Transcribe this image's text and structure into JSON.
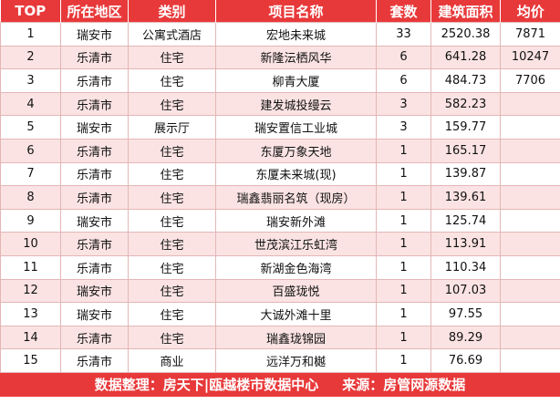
{
  "headers": [
    "TOP",
    "所在地区",
    "类别",
    "项目名称",
    "套数",
    "建筑面积",
    "均价"
  ],
  "rows": [
    {
      "top": "1",
      "region": "瑞安市",
      "category": "公寓式酒店",
      "project": "宏地未来城",
      "units": "33",
      "area": "2520.38",
      "price": "7871"
    },
    {
      "top": "2",
      "region": "乐清市",
      "category": "住宅",
      "project": "新隆沄栖风华",
      "units": "6",
      "area": "641.28",
      "price": "10247"
    },
    {
      "top": "3",
      "region": "乐清市",
      "category": "住宅",
      "project": "柳青大厦",
      "units": "6",
      "area": "484.73",
      "price": "7706"
    },
    {
      "top": "4",
      "region": "乐清市",
      "category": "住宅",
      "project": "建发城投缦云",
      "units": "3",
      "area": "582.23",
      "price": ""
    },
    {
      "top": "5",
      "region": "瑞安市",
      "category": "展示厅",
      "project": "瑞安置信工业城",
      "units": "3",
      "area": "159.77",
      "price": ""
    },
    {
      "top": "6",
      "region": "乐清市",
      "category": "住宅",
      "project": "东厦万象天地",
      "units": "1",
      "area": "165.17",
      "price": ""
    },
    {
      "top": "7",
      "region": "乐清市",
      "category": "住宅",
      "project": "东厦未来城(现)",
      "units": "1",
      "area": "139.87",
      "price": ""
    },
    {
      "top": "8",
      "region": "乐清市",
      "category": "住宅",
      "project": "瑞鑫翡丽名筑（现房）",
      "units": "1",
      "area": "139.61",
      "price": ""
    },
    {
      "top": "9",
      "region": "瑞安市",
      "category": "住宅",
      "project": "瑞安新外滩",
      "units": "1",
      "area": "125.74",
      "price": ""
    },
    {
      "top": "10",
      "region": "乐清市",
      "category": "住宅",
      "project": "世茂滨江乐虹湾",
      "units": "1",
      "area": "113.91",
      "price": ""
    },
    {
      "top": "11",
      "region": "乐清市",
      "category": "住宅",
      "project": "新湖金色海湾",
      "units": "1",
      "area": "110.34",
      "price": ""
    },
    {
      "top": "12",
      "region": "瑞安市",
      "category": "住宅",
      "project": "百盛珑悦",
      "units": "1",
      "area": "107.03",
      "price": ""
    },
    {
      "top": "13",
      "region": "瑞安市",
      "category": "住宅",
      "project": "大诚外滩十里",
      "units": "1",
      "area": "97.55",
      "price": ""
    },
    {
      "top": "14",
      "region": "乐清市",
      "category": "住宅",
      "project": "瑞鑫珑锦园",
      "units": "1",
      "area": "89.29",
      "price": ""
    },
    {
      "top": "15",
      "region": "乐清市",
      "category": "商业",
      "project": "远洋万和樾",
      "units": "1",
      "area": "76.69",
      "price": ""
    }
  ],
  "footer": {
    "source_left": "数据整理：房天下|瓯越楼市数据中心",
    "source_right": "来源：房管网源数据"
  },
  "colors": {
    "header_bg": "#e8393a",
    "stripe_bg": "#fbe3e3",
    "border": "#e4b6b6"
  }
}
